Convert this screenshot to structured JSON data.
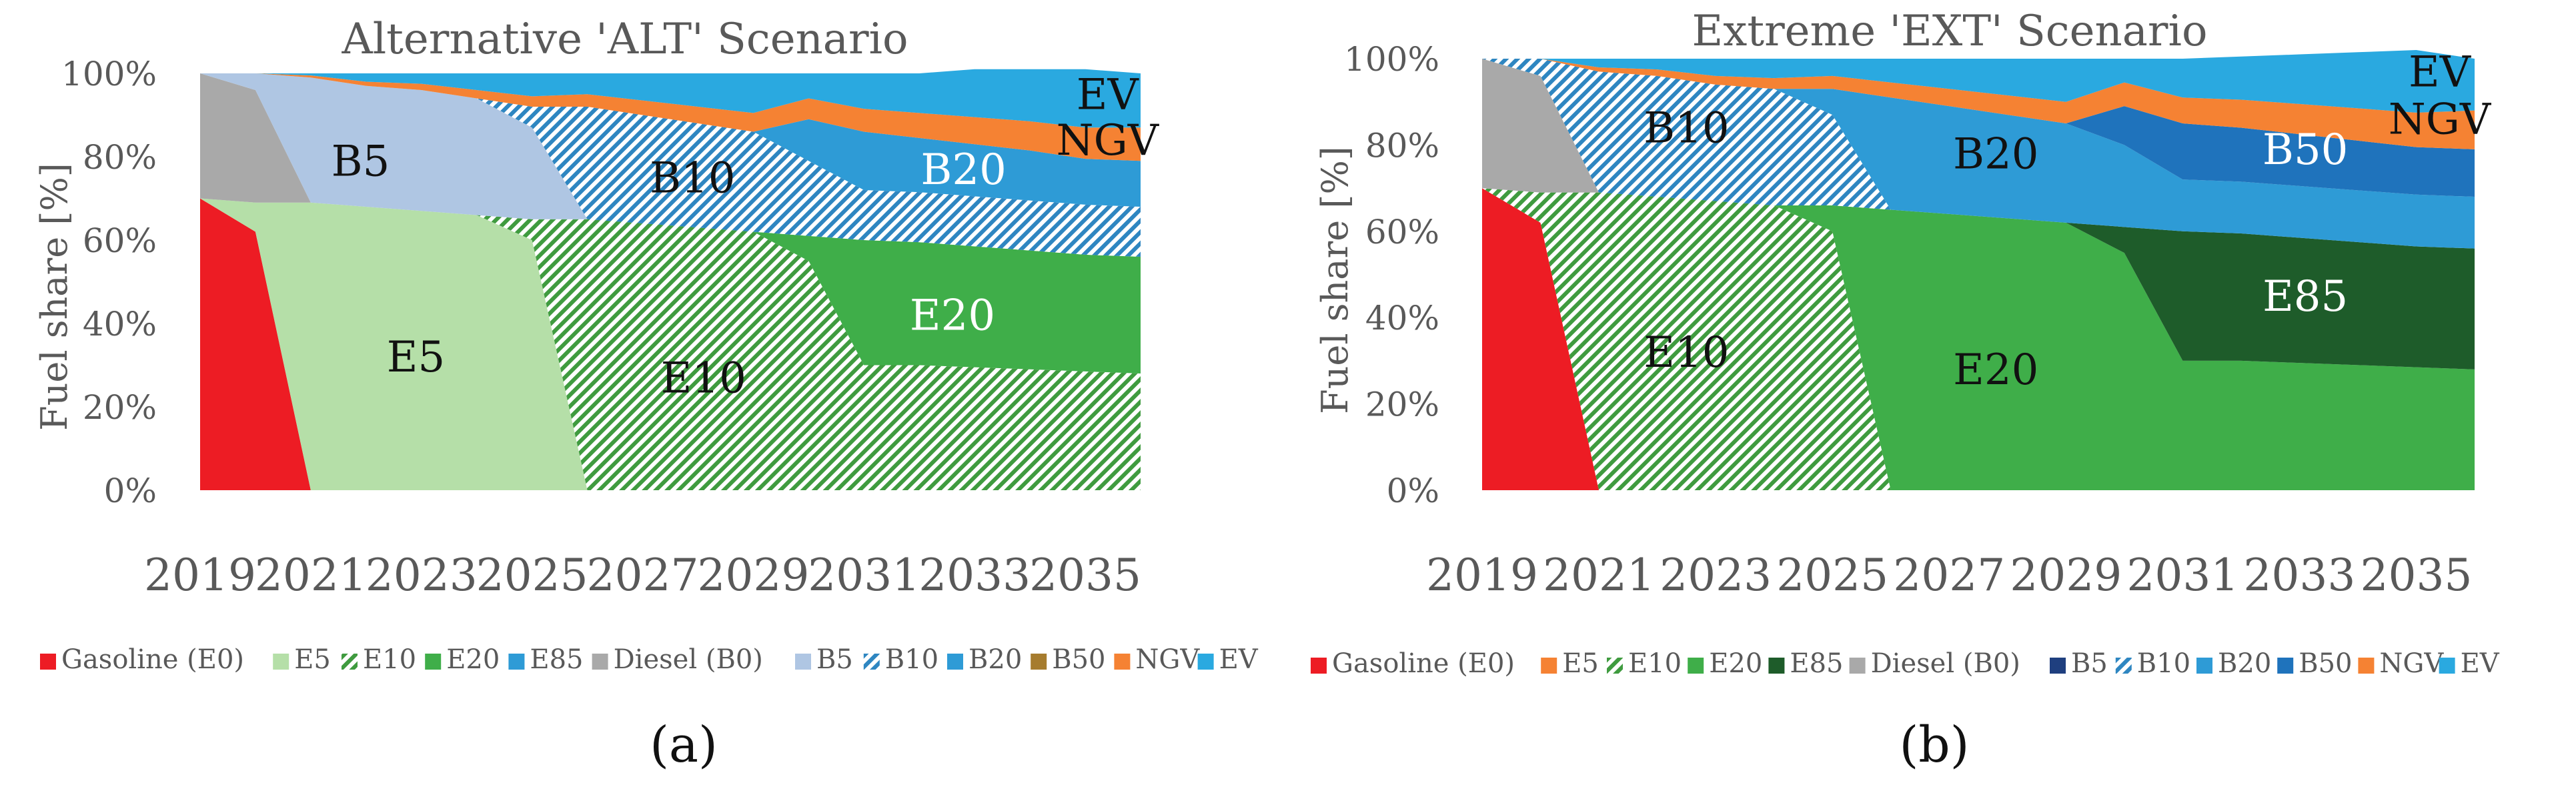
{
  "chart_data": [
    {
      "type": "area",
      "panel_label": "(a)",
      "title": "Alternative 'ALT' Scenario",
      "xlabel": "",
      "ylabel": "Fuel share [%]",
      "x": [
        2019,
        2020,
        2021,
        2022,
        2023,
        2024,
        2025,
        2026,
        2027,
        2028,
        2029,
        2030,
        2031,
        2032,
        2033,
        2034,
        2035,
        2036
      ],
      "xticks": [
        "2019",
        "2021",
        "2023",
        "2025",
        "2027",
        "2029",
        "2031",
        "2033",
        "2035"
      ],
      "yticks": [
        "0%",
        "20%",
        "40%",
        "60%",
        "80%",
        "100%"
      ],
      "ylim": [
        0,
        100
      ],
      "series": [
        {
          "name": "Gasoline (E0)",
          "color": "#ED1C24",
          "pattern": "solid",
          "values": [
            70,
            62,
            0,
            0,
            0,
            0,
            0,
            0,
            0,
            0,
            0,
            0,
            0,
            0,
            0,
            0,
            0,
            0
          ]
        },
        {
          "name": "E5",
          "color": "#B5DFA8",
          "pattern": "solid",
          "values": [
            0,
            7,
            69,
            68,
            67,
            66,
            60,
            0,
            0,
            0,
            0,
            0,
            0,
            0,
            0,
            0,
            0,
            0
          ]
        },
        {
          "name": "E10",
          "color": "#3F9B3F",
          "pattern": "hatch",
          "values": [
            0,
            0,
            0,
            0,
            0,
            0,
            5,
            65,
            64,
            63,
            62,
            55,
            30,
            30,
            29.5,
            29,
            28.5,
            28
          ]
        },
        {
          "name": "E20",
          "color": "#3FAE49",
          "pattern": "solid",
          "values": [
            0,
            0,
            0,
            0,
            0,
            0,
            0,
            0,
            0,
            0,
            0,
            6,
            30,
            29.5,
            29,
            28.5,
            28,
            28
          ]
        },
        {
          "name": "E85",
          "color": "#2E9BD6",
          "pattern": "solid",
          "values": [
            0,
            0,
            0,
            0,
            0,
            0,
            0,
            0,
            0,
            0,
            0,
            0,
            0,
            0,
            0,
            0,
            0,
            0
          ]
        },
        {
          "name": "Diesel (B0)",
          "color": "#A9A9A9",
          "pattern": "solid",
          "values": [
            30,
            27,
            0,
            0,
            0,
            0,
            0,
            0,
            0,
            0,
            0,
            0,
            0,
            0,
            0,
            0,
            0,
            0
          ]
        },
        {
          "name": "B5",
          "color": "#AFC6E3",
          "pattern": "solid",
          "values": [
            0,
            4,
            30,
            29,
            29,
            28,
            22,
            0,
            0,
            0,
            0,
            0,
            0,
            0,
            0,
            0,
            0,
            0
          ]
        },
        {
          "name": "B10",
          "color": "#2E86C1",
          "pattern": "hatch",
          "values": [
            0,
            0,
            0,
            0,
            0,
            0,
            5,
            27,
            26,
            25,
            24,
            18,
            12,
            12,
            12,
            12,
            12,
            12
          ]
        },
        {
          "name": "B20",
          "color": "#2E9BD6",
          "pattern": "solid",
          "values": [
            0,
            0,
            0,
            0,
            0,
            0,
            0,
            0,
            0,
            0,
            0,
            10,
            14,
            13,
            12.5,
            12,
            11,
            11
          ]
        },
        {
          "name": "B50",
          "color": "#A67C2E",
          "pattern": "solid",
          "values": [
            0,
            0,
            0,
            0,
            0,
            0,
            0,
            0,
            0,
            0,
            0,
            0,
            0,
            0,
            0,
            0,
            0,
            0
          ]
        },
        {
          "name": "NGV",
          "color": "#F58233",
          "pattern": "solid",
          "values": [
            0,
            0,
            0.5,
            1,
            1.5,
            2,
            2.5,
            3,
            3.5,
            4,
            4.5,
            5,
            5.5,
            6,
            6.5,
            7,
            7.5,
            8
          ]
        },
        {
          "name": "EV",
          "color": "#2AA9E0",
          "pattern": "solid",
          "values": [
            0,
            0,
            0.5,
            2,
            2.5,
            4,
            5.5,
            5,
            6.5,
            8,
            9.5,
            6,
            8.5,
            9.5,
            11.5,
            12.5,
            14,
            13
          ]
        }
      ],
      "region_labels": [
        {
          "text": "B5",
          "x": 2021.9,
          "y": 79,
          "color": "#111111"
        },
        {
          "text": "E5",
          "x": 2022.9,
          "y": 32,
          "color": "#111111"
        },
        {
          "text": "B10",
          "x": 2027.9,
          "y": 75,
          "color": "#111111"
        },
        {
          "text": "E10",
          "x": 2028.1,
          "y": 27,
          "color": "#111111"
        },
        {
          "text": "E20",
          "x": 2032.6,
          "y": 42,
          "color": "#ffffff"
        },
        {
          "text": "B20",
          "x": 2032.8,
          "y": 77,
          "color": "#ffffff"
        },
        {
          "text": "EV",
          "x": 2035.4,
          "y": 95,
          "color": "#111111"
        },
        {
          "text": "NGV",
          "x": 2035.4,
          "y": 84,
          "color": "#111111"
        }
      ]
    },
    {
      "type": "area",
      "panel_label": "(b)",
      "title": "Extreme 'EXT' Scenario",
      "xlabel": "",
      "ylabel": "Fuel share [%]",
      "x": [
        2019,
        2020,
        2021,
        2022,
        2023,
        2024,
        2025,
        2026,
        2027,
        2028,
        2029,
        2030,
        2031,
        2032,
        2033,
        2034,
        2035,
        2036
      ],
      "xticks": [
        "2019",
        "2021",
        "2023",
        "2025",
        "2027",
        "2029",
        "2031",
        "2033",
        "2035"
      ],
      "yticks": [
        "0%",
        "20%",
        "40%",
        "60%",
        "80%",
        "100%"
      ],
      "ylim": [
        0,
        100
      ],
      "series": [
        {
          "name": "Gasoline (E0)",
          "color": "#ED1C24",
          "pattern": "solid",
          "values": [
            70,
            62,
            0,
            0,
            0,
            0,
            0,
            0,
            0,
            0,
            0,
            0,
            0,
            0,
            0,
            0,
            0,
            0
          ]
        },
        {
          "name": "E5",
          "color": "#F58233",
          "pattern": "solid",
          "values": [
            0,
            0,
            0,
            0,
            0,
            0,
            0,
            0,
            0,
            0,
            0,
            0,
            0,
            0,
            0,
            0,
            0,
            0
          ]
        },
        {
          "name": "E10",
          "color": "#3F9B3F",
          "pattern": "hatch",
          "values": [
            0,
            7,
            69,
            68,
            67,
            66,
            60,
            0,
            0,
            0,
            0,
            0,
            0,
            0,
            0,
            0,
            0,
            0
          ]
        },
        {
          "name": "E20",
          "color": "#3FAE49",
          "pattern": "solid",
          "values": [
            0,
            0,
            0,
            0,
            0,
            0,
            6,
            65,
            64,
            63,
            62,
            55,
            30,
            30,
            29.5,
            29,
            28.5,
            28
          ]
        },
        {
          "name": "E85",
          "color": "#1E5C2A",
          "pattern": "solid",
          "values": [
            0,
            0,
            0,
            0,
            0,
            0,
            0,
            0,
            0,
            0,
            0,
            6,
            30,
            29.5,
            29,
            28.5,
            28,
            28
          ]
        },
        {
          "name": "Diesel (B0)",
          "color": "#A9A9A9",
          "pattern": "solid",
          "values": [
            30,
            27,
            0,
            0,
            0,
            0,
            0,
            0,
            0,
            0,
            0,
            0,
            0,
            0,
            0,
            0,
            0,
            0
          ]
        },
        {
          "name": "B5",
          "color": "#1F3F7F",
          "pattern": "solid",
          "values": [
            0,
            0,
            0,
            0,
            0,
            0,
            0,
            0,
            0,
            0,
            0,
            0,
            0,
            0,
            0,
            0,
            0,
            0
          ]
        },
        {
          "name": "B10",
          "color": "#2E86C1",
          "pattern": "hatch",
          "values": [
            0,
            4,
            28,
            28,
            27,
            27,
            21,
            0,
            0,
            0,
            0,
            0,
            0,
            0,
            0,
            0,
            0,
            0
          ]
        },
        {
          "name": "B20",
          "color": "#2E9BD6",
          "pattern": "solid",
          "values": [
            0,
            0,
            0,
            0,
            0,
            0,
            6,
            26,
            25,
            24,
            23,
            19,
            12,
            12,
            12,
            12,
            12,
            12
          ]
        },
        {
          "name": "B50",
          "color": "#1F73BC",
          "pattern": "solid",
          "values": [
            0,
            0,
            0,
            0,
            0,
            0,
            0,
            0,
            0,
            0,
            0,
            9,
            13,
            12.5,
            12,
            11.5,
            11,
            11
          ]
        },
        {
          "name": "NGV",
          "color": "#F58233",
          "pattern": "solid",
          "values": [
            0,
            0,
            1,
            1.5,
            2,
            2.5,
            3,
            3.5,
            4,
            4.5,
            5,
            5.5,
            6,
            6.5,
            7,
            7.5,
            8,
            9
          ]
        },
        {
          "name": "EV",
          "color": "#2AA9E0",
          "pattern": "solid",
          "values": [
            0,
            0,
            2,
            2.5,
            4,
            4.5,
            4,
            5.5,
            7,
            8.5,
            10,
            5.5,
            9,
            10,
            11.5,
            13,
            14.5,
            12
          ]
        }
      ],
      "region_labels": [
        {
          "text": "B10",
          "x": 2022.5,
          "y": 84,
          "color": "#111111"
        },
        {
          "text": "E10",
          "x": 2022.5,
          "y": 32,
          "color": "#111111"
        },
        {
          "text": "B20",
          "x": 2027.8,
          "y": 78,
          "color": "#111111"
        },
        {
          "text": "E20",
          "x": 2027.8,
          "y": 28,
          "color": "#111111"
        },
        {
          "text": "B50",
          "x": 2033.1,
          "y": 79,
          "color": "#ffffff"
        },
        {
          "text": "E85",
          "x": 2033.1,
          "y": 45,
          "color": "#ffffff"
        },
        {
          "text": "EV",
          "x": 2035.4,
          "y": 97,
          "color": "#111111"
        },
        {
          "text": "NGV",
          "x": 2035.4,
          "y": 86,
          "color": "#111111"
        }
      ]
    }
  ]
}
